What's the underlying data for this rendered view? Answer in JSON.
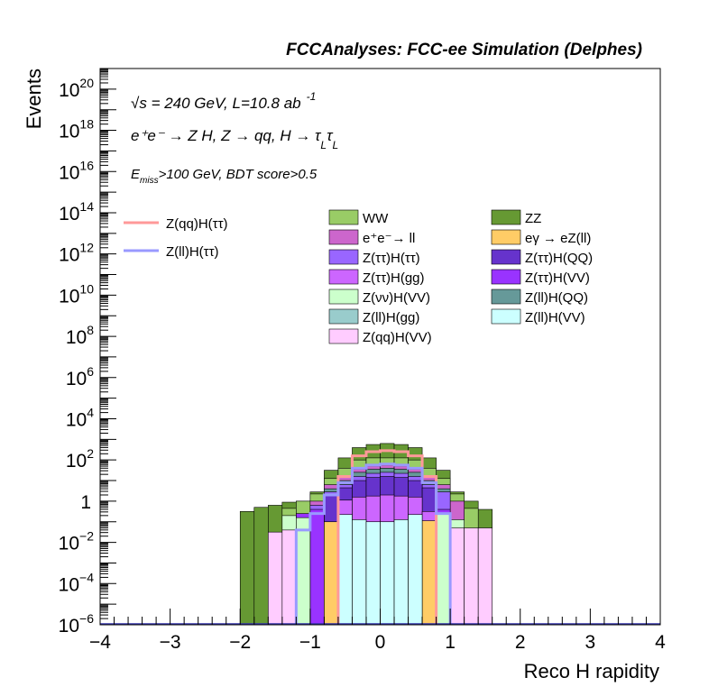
{
  "chart_data": {
    "type": "bar",
    "title": "FCCAnalyses: FCC-ee Simulation (Delphes)",
    "xlabel": "Reco H rapidity",
    "ylabel": "Events",
    "xlim": [
      -4,
      4
    ],
    "ylim_exponent": [
      -6,
      21
    ],
    "log_y": true,
    "x_ticks": [
      "−4",
      "−3",
      "−2",
      "−1",
      "0",
      "1",
      "2",
      "3",
      "4"
    ],
    "y_ticks": [
      {
        "exp": -6,
        "base": "10",
        "sup": "−6"
      },
      {
        "exp": -4,
        "base": "10",
        "sup": "−4"
      },
      {
        "exp": -2,
        "base": "10",
        "sup": "−2"
      },
      {
        "exp": 0,
        "base": "1",
        "sup": ""
      },
      {
        "exp": 2,
        "base": "10",
        "sup": "2"
      },
      {
        "exp": 4,
        "base": "10",
        "sup": "4"
      },
      {
        "exp": 6,
        "base": "10",
        "sup": "6"
      },
      {
        "exp": 8,
        "base": "10",
        "sup": "8"
      },
      {
        "exp": 10,
        "base": "10",
        "sup": "10"
      },
      {
        "exp": 12,
        "base": "10",
        "sup": "12"
      },
      {
        "exp": 14,
        "base": "10",
        "sup": "14"
      },
      {
        "exp": 16,
        "base": "10",
        "sup": "16"
      },
      {
        "exp": 18,
        "base": "10",
        "sup": "18"
      },
      {
        "exp": 20,
        "base": "10",
        "sup": "20"
      }
    ],
    "annotations": {
      "line1_sqrt": "√s",
      "line1_rest": " = 240 GeV, L=10.8 ab",
      "line1_sup": "-1",
      "line2": "e⁺e⁻ → Z H, Z → qq, H → τ",
      "line2_sub1": "L",
      "line2_tau": "τ",
      "line2_sub2": "L",
      "line3_E": "E",
      "line3_sub": "miss",
      "line3_rest": ">100 GeV, BDT score>0.5"
    },
    "bin_edges_note": "bins of width 0.2 in rapidity",
    "stack": [
      {
        "name": "Z(ll)H(VV)",
        "color": "#ccffff",
        "bins": {
          "-0.6": -0.65,
          "-0.4": -0.9,
          "-0.2": -1.0,
          "0.0": -1.0,
          "0.2": -0.9,
          "0.4": -0.65
        }
      },
      {
        "name": "Z(ll)H(gg)",
        "color": "#99cccc",
        "bins": {
          "-0.6": -1.3,
          "-0.4": -1.3,
          "-0.2": -1.3,
          "0.0": -1.3,
          "0.2": -1.3,
          "0.4": -1.3
        }
      },
      {
        "name": "Z(qq)H(VV)",
        "color": "#ffccff",
        "bins": {
          "-1.6": -1.5,
          "-1.4": -1.4,
          "1.0": -1.3,
          "1.2": -1.3,
          "1.4": -1.3
        }
      },
      {
        "name": "Z(νν)H(VV)",
        "color": "#ccffcc",
        "bins": {
          "-1.4": -0.7,
          "-1.2": -0.8,
          "0.8": -0.6,
          "1.0": -0.9
        }
      },
      {
        "name": "eγ → eZ(ll)",
        "color": "#ffcc66",
        "bins": {
          "-0.8": -1.0,
          "0.6": -0.95
        }
      },
      {
        "name": "Z(ττ)H(VV)",
        "color": "#9933ff",
        "bins": {
          "-1.2": -0.6,
          "-1.0": -0.4,
          "0.8": -0.4
        }
      },
      {
        "name": "Z(ττ)H(gg)",
        "color": "#cc66ff",
        "bins": {
          "-0.6": 0.05,
          "-0.4": 0.2,
          "-0.2": 0.25,
          "0.0": 0.3,
          "0.2": 0.25,
          "0.4": 0.2,
          "0.6": -0.5
        }
      },
      {
        "name": "Z(ττ)H(QQ)",
        "color": "#6633cc",
        "bins": {
          "-0.8": 0.3,
          "-0.6": 0.65,
          "-0.4": 1.0,
          "-0.2": 1.15,
          "0.0": 1.2,
          "0.2": 1.15,
          "0.4": 1.0,
          "0.6": 0.65
        }
      },
      {
        "name": "Z(ττ)H(ττ)",
        "color": "#9966ff",
        "bins": {
          "-1.0": -0.2,
          "-0.8": 0.45,
          "-0.6": 0.8,
          "-0.4": 1.2,
          "-0.2": 1.35,
          "0.0": 1.4,
          "0.2": 1.35,
          "0.4": 1.2,
          "0.6": 0.8,
          "0.8": 0.45
        }
      },
      {
        "name": "Z(ll)H(QQ)",
        "color": "#669999",
        "bins": {
          "-0.8": 0.6,
          "-0.6": 1.0,
          "-0.4": 1.4,
          "-0.2": 1.55,
          "0.0": 1.6,
          "0.2": 1.55,
          "0.4": 1.4,
          "0.6": 1.0,
          "0.8": 0.6
        }
      },
      {
        "name": "e⁺e⁻→ ll",
        "color": "#cc66cc",
        "bins": {
          "-1.0": 0.0,
          "-0.8": 0.8,
          "-0.6": 1.15,
          "-0.4": 1.55,
          "-0.2": 1.7,
          "0.0": 1.75,
          "0.2": 1.7,
          "0.4": 1.55,
          "0.6": 1.15,
          "0.8": 0.8,
          "1.0": 0.0
        }
      },
      {
        "name": "WW",
        "color": "#99cc66",
        "bins": {
          "-1.4": -0.35,
          "-1.2": 0.0,
          "-1.0": 0.35,
          "-0.8": 1.1,
          "-0.6": 1.6,
          "-0.4": 2.0,
          "-0.2": 2.1,
          "0.0": 2.1,
          "0.2": 2.1,
          "0.4": 2.0,
          "0.6": 1.6,
          "0.8": 1.1,
          "1.0": 0.35,
          "1.2": -0.35
        }
      },
      {
        "name": "ZZ",
        "color": "#669933",
        "bins": {
          "-2.0": -0.5,
          "-1.8": -0.3,
          "-1.6": -0.2,
          "-1.4": -0.05,
          "-1.2": 0.0,
          "-1.0": 0.45,
          "-0.8": 1.5,
          "-0.6": 2.1,
          "-0.4": 2.6,
          "-0.2": 2.75,
          "0.0": 2.8,
          "0.2": 2.75,
          "0.4": 2.6,
          "0.6": 2.1,
          "0.8": 1.5,
          "1.0": 0.45,
          "1.2": 0.0,
          "1.4": -0.4
        }
      }
    ],
    "lines": [
      {
        "name": "Z(qq)H(ττ)",
        "color": "#ff9999",
        "bins": {
          "-0.6": 1.2,
          "-0.4": 2.2,
          "-0.2": 2.4,
          "0.0": 2.45,
          "0.2": 2.4,
          "0.4": 2.2,
          "0.6": 1.2
        }
      },
      {
        "name": "Z(ll)H(ττ)",
        "color": "#9999ff",
        "bins": {
          "-1.2": -1.4,
          "-1.0": -0.6,
          "-0.8": 0.3,
          "-0.6": 0.9,
          "-0.4": 1.6,
          "-0.2": 1.75,
          "0.0": 1.8,
          "0.2": 1.75,
          "0.4": 1.6,
          "0.6": 0.9,
          "0.8": -0.6
        }
      }
    ],
    "legend_placement": "upper-middle"
  }
}
